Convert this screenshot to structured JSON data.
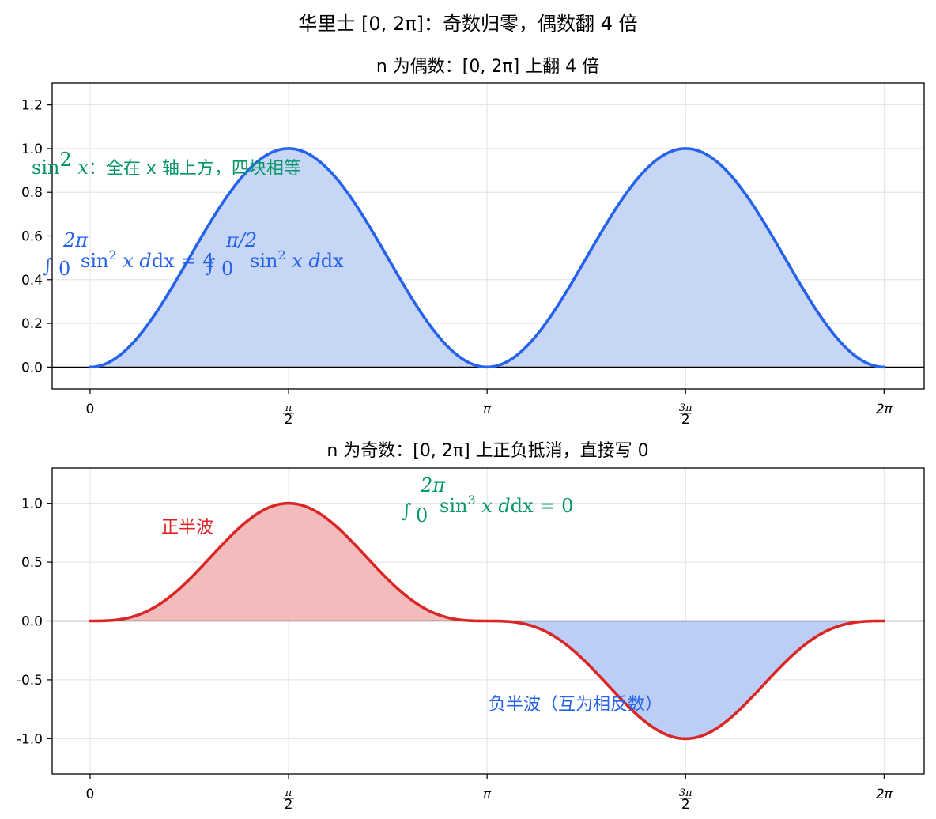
{
  "figure": {
    "suptitle": "华里士 [0, 2π]：奇数归零，偶数翻 4 倍"
  },
  "colors": {
    "blue": "#2563eb",
    "blue_fill": "#c7d6f5",
    "red": "#dc2626",
    "red_fill": "#f2bcbc",
    "green": "#059669",
    "axis_line": "#000000",
    "grid": "#e2e2e2"
  },
  "chart_data": [
    {
      "type": "area",
      "title": "n 为偶数：[0, 2π] 上翻 4 倍",
      "function": "sin^2(x)",
      "x_range": [
        0,
        6.283185
      ],
      "xlim": [
        -0.3,
        6.6
      ],
      "ylim": [
        -0.1,
        1.3
      ],
      "xticks": [
        0,
        1.570796,
        3.141593,
        4.712389,
        6.283185
      ],
      "xtick_labels": [
        "0",
        "π/2",
        "π",
        "3π/2",
        "2π"
      ],
      "yticks": [
        0.0,
        0.2,
        0.4,
        0.6,
        0.8,
        1.0,
        1.2
      ],
      "ytick_labels": [
        "0.0",
        "0.2",
        "0.4",
        "0.6",
        "0.8",
        "1.0",
        "1.2"
      ],
      "grid": true,
      "series": [
        {
          "name": "sin²x",
          "color": "#2563eb",
          "fill": "#c7d6f5"
        }
      ],
      "annotations": {
        "note_text": "：全在 x 轴上方，四块相等",
        "formula_lhs": "dx = 4",
        "formula_rhs": "dx"
      }
    },
    {
      "type": "area",
      "title": "n 为奇数：[0, 2π] 上正负抵消，直接写 0",
      "function": "sin^3(x)",
      "x_range": [
        0,
        6.283185
      ],
      "xlim": [
        -0.3,
        6.6
      ],
      "ylim": [
        -1.3,
        1.3
      ],
      "xticks": [
        0,
        1.570796,
        3.141593,
        4.712389,
        6.283185
      ],
      "xtick_labels": [
        "0",
        "π/2",
        "π",
        "3π/2",
        "2π"
      ],
      "yticks": [
        -1.0,
        -0.5,
        0.0,
        0.5,
        1.0
      ],
      "ytick_labels": [
        "-1.0",
        "-0.5",
        "0.0",
        "0.5",
        "1.0"
      ],
      "grid": true,
      "series": [
        {
          "name": "sin³x",
          "color": "#dc2626",
          "positive_fill": "#f2bcbc",
          "negative_fill": "#bccdf6"
        }
      ],
      "annotations": {
        "positive_label": "正半波",
        "negative_label": "负半波（互为相反数）",
        "formula": "dx = 0"
      }
    }
  ]
}
